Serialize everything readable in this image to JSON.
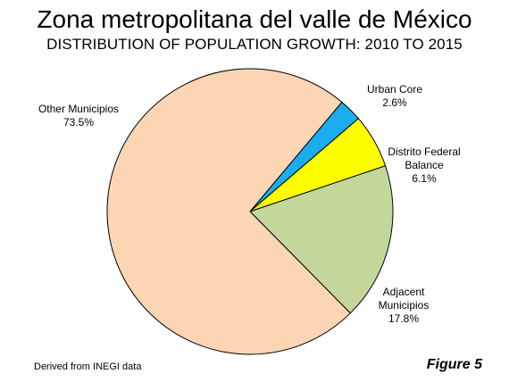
{
  "header": {
    "title": "Zona metropolitana del valle de México",
    "subtitle": "DISTRIBUTION OF POPULATION GROWTH: 2010 TO 2015"
  },
  "footer": {
    "source": "Derived from INEGI data",
    "figure": "Figure 5"
  },
  "chart_data": {
    "type": "pie",
    "title": "Zona metropolitana del valle de México",
    "subtitle": "DISTRIBUTION OF POPULATION GROWTH: 2010 TO 2015",
    "legend": "none (direct labels)",
    "slices": [
      {
        "label": [
          "Urban Core"
        ],
        "value": 2.6,
        "display": "2.6%",
        "color": "#1aaef0"
      },
      {
        "label": [
          "Distrito Federal",
          "Balance"
        ],
        "value": 6.1,
        "display": "6.1%",
        "color": "#ffff00"
      },
      {
        "label": [
          "Adjacent",
          "Municipios"
        ],
        "value": 17.8,
        "display": "17.8%",
        "color": "#c4d79b"
      },
      {
        "label": [
          "Other Municipios"
        ],
        "value": 73.5,
        "display": "73.5%",
        "color": "#fcd5b4"
      }
    ]
  }
}
